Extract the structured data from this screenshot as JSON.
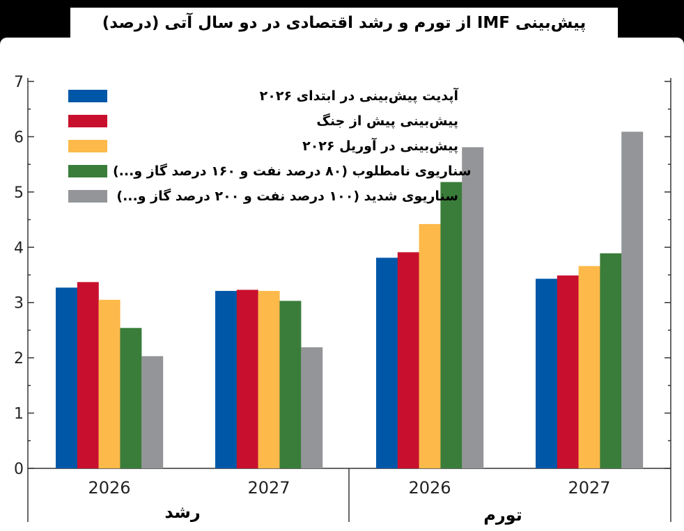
{
  "title": "پیش‌بینی IMF از تورم و رشد اقتصادی در دو سال آتی (درصد)",
  "chart_data": {
    "type": "bar",
    "title": "پیش‌بینی IMF از تورم و رشد اقتصادی در دو سال آتی (درصد)",
    "ylim": [
      0,
      7
    ],
    "yticks": [
      "0",
      "1",
      "2",
      "3",
      "4",
      "5",
      "6",
      "7"
    ],
    "groups": [
      {
        "label": "رشد",
        "categories": [
          "2026",
          "2027"
        ]
      },
      {
        "label": "تورم",
        "categories": [
          "2026",
          "2027"
        ]
      }
    ],
    "categories": [
      "2026",
      "2027",
      "2026",
      "2027"
    ],
    "series": [
      {
        "name": "آپدیت پیش‌بینی در ابتدای ۲۰۲۶",
        "color": "#0057a8",
        "values": [
          3.27,
          3.21,
          3.81,
          3.43
        ]
      },
      {
        "name": "پیش‌بینی پیش از جنگ",
        "color": "#c8102e",
        "values": [
          3.37,
          3.23,
          3.91,
          3.49
        ]
      },
      {
        "name": "پیش‌بینی در آوریل ۲۰۲۶",
        "color": "#fdb94a",
        "values": [
          3.05,
          3.21,
          4.42,
          3.66
        ]
      },
      {
        "name": "سناریوی نامطلوب (۸۰ درصد نفت و ۱۶۰ درصد گاز و...)",
        "color": "#3a7d3a",
        "values": [
          2.54,
          3.03,
          5.18,
          3.89
        ]
      },
      {
        "name": "سناریوی شدید (۱۰۰ درصد نفت و ۲۰۰ درصد گاز و...)",
        "color": "#939598",
        "values": [
          2.03,
          2.19,
          5.81,
          6.09
        ]
      }
    ]
  }
}
